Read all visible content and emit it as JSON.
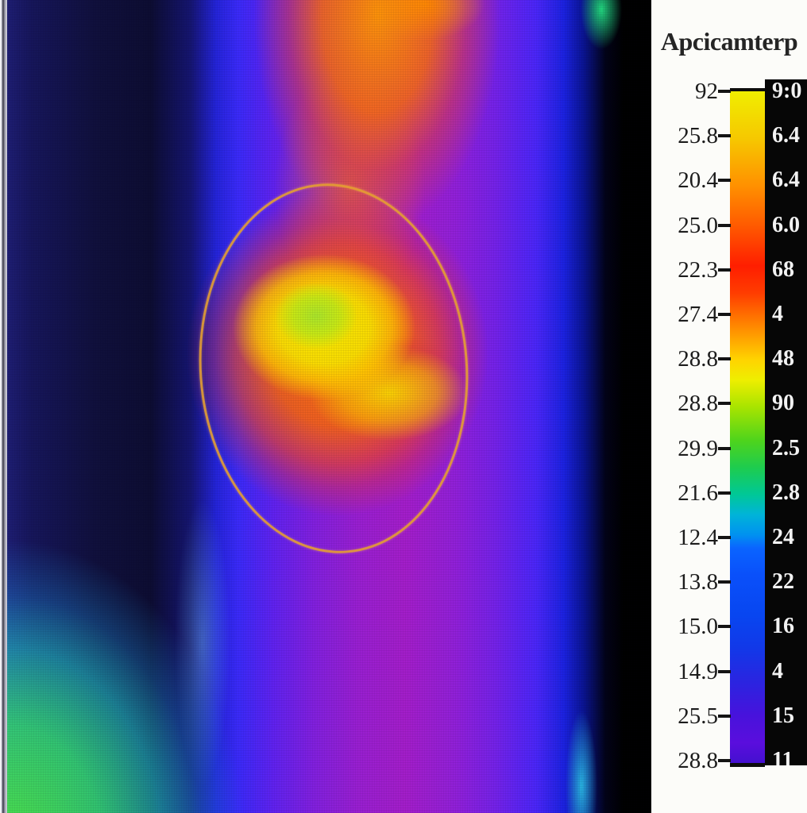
{
  "figure": {
    "title": "Apcicamterp"
  },
  "colorbar": {
    "rows": [
      {
        "left": "92",
        "right": "9:0"
      },
      {
        "left": "25.8",
        "right": "6.4"
      },
      {
        "left": "20.4",
        "right": "6.4"
      },
      {
        "left": "25.0",
        "right": "6.0"
      },
      {
        "left": "22.3",
        "right": "68"
      },
      {
        "left": "27.4",
        "right": "4"
      },
      {
        "left": "28.8",
        "right": "48"
      },
      {
        "left": "28.8",
        "right": "90"
      },
      {
        "left": "29.9",
        "right": "2.5"
      },
      {
        "left": "21.6",
        "right": "2.8"
      },
      {
        "left": "12.4",
        "right": "24"
      },
      {
        "left": "13.8",
        "right": "22"
      },
      {
        "left": "15.0",
        "right": "16"
      },
      {
        "left": "14.9",
        "right": "4"
      },
      {
        "left": "25.5",
        "right": "15"
      },
      {
        "left": "28.8",
        "right": "11"
      }
    ]
  },
  "chart_data": {
    "type": "heatmap",
    "title": "Apcicamterp",
    "description": "False-color infrared thermogram (rainbow palette) of a limb/knee region; an orange elliptical region of interest outlines a bright yellow-green hotspot; vertical color scale bar on the right with tick labels on the left side and white value labels on a black strip on the right side",
    "colorbar": {
      "position": "right",
      "tick_labels_top_to_bottom": [
        "92",
        "25.8",
        "20.4",
        "25.0",
        "22.3",
        "27.4",
        "28.8",
        "28.8",
        "29.9",
        "21.6",
        "12.4",
        "13.8",
        "15.0",
        "14.9",
        "25.5",
        "28.8"
      ],
      "value_labels_top_to_bottom": [
        "9:0",
        "6.4",
        "6.4",
        "6.0",
        "68",
        "4",
        "48",
        "90",
        "2.5",
        "2.8",
        "24",
        "22",
        "16",
        "4",
        "15",
        "11"
      ],
      "gradient_top_to_bottom": [
        "#f0ee00",
        "#ff9100",
        "#ff1e00",
        "#ff8800",
        "#eeee00",
        "#a8e400",
        "#1ecc4e",
        "#00c896",
        "#00b4d8",
        "#0a64ff",
        "#0846f0",
        "#2b24e0",
        "#5a0edd",
        "#4410d0"
      ]
    },
    "roi": {
      "shape": "ellipse",
      "outline_color": "#e6a032"
    },
    "hotspot_core_color": "#bce32d",
    "hotspot_glow_color": "#ff7d00",
    "cold_region_colors": [
      "#10103c",
      "#2424d8",
      "#a31ec9",
      "#50eb41"
    ]
  }
}
